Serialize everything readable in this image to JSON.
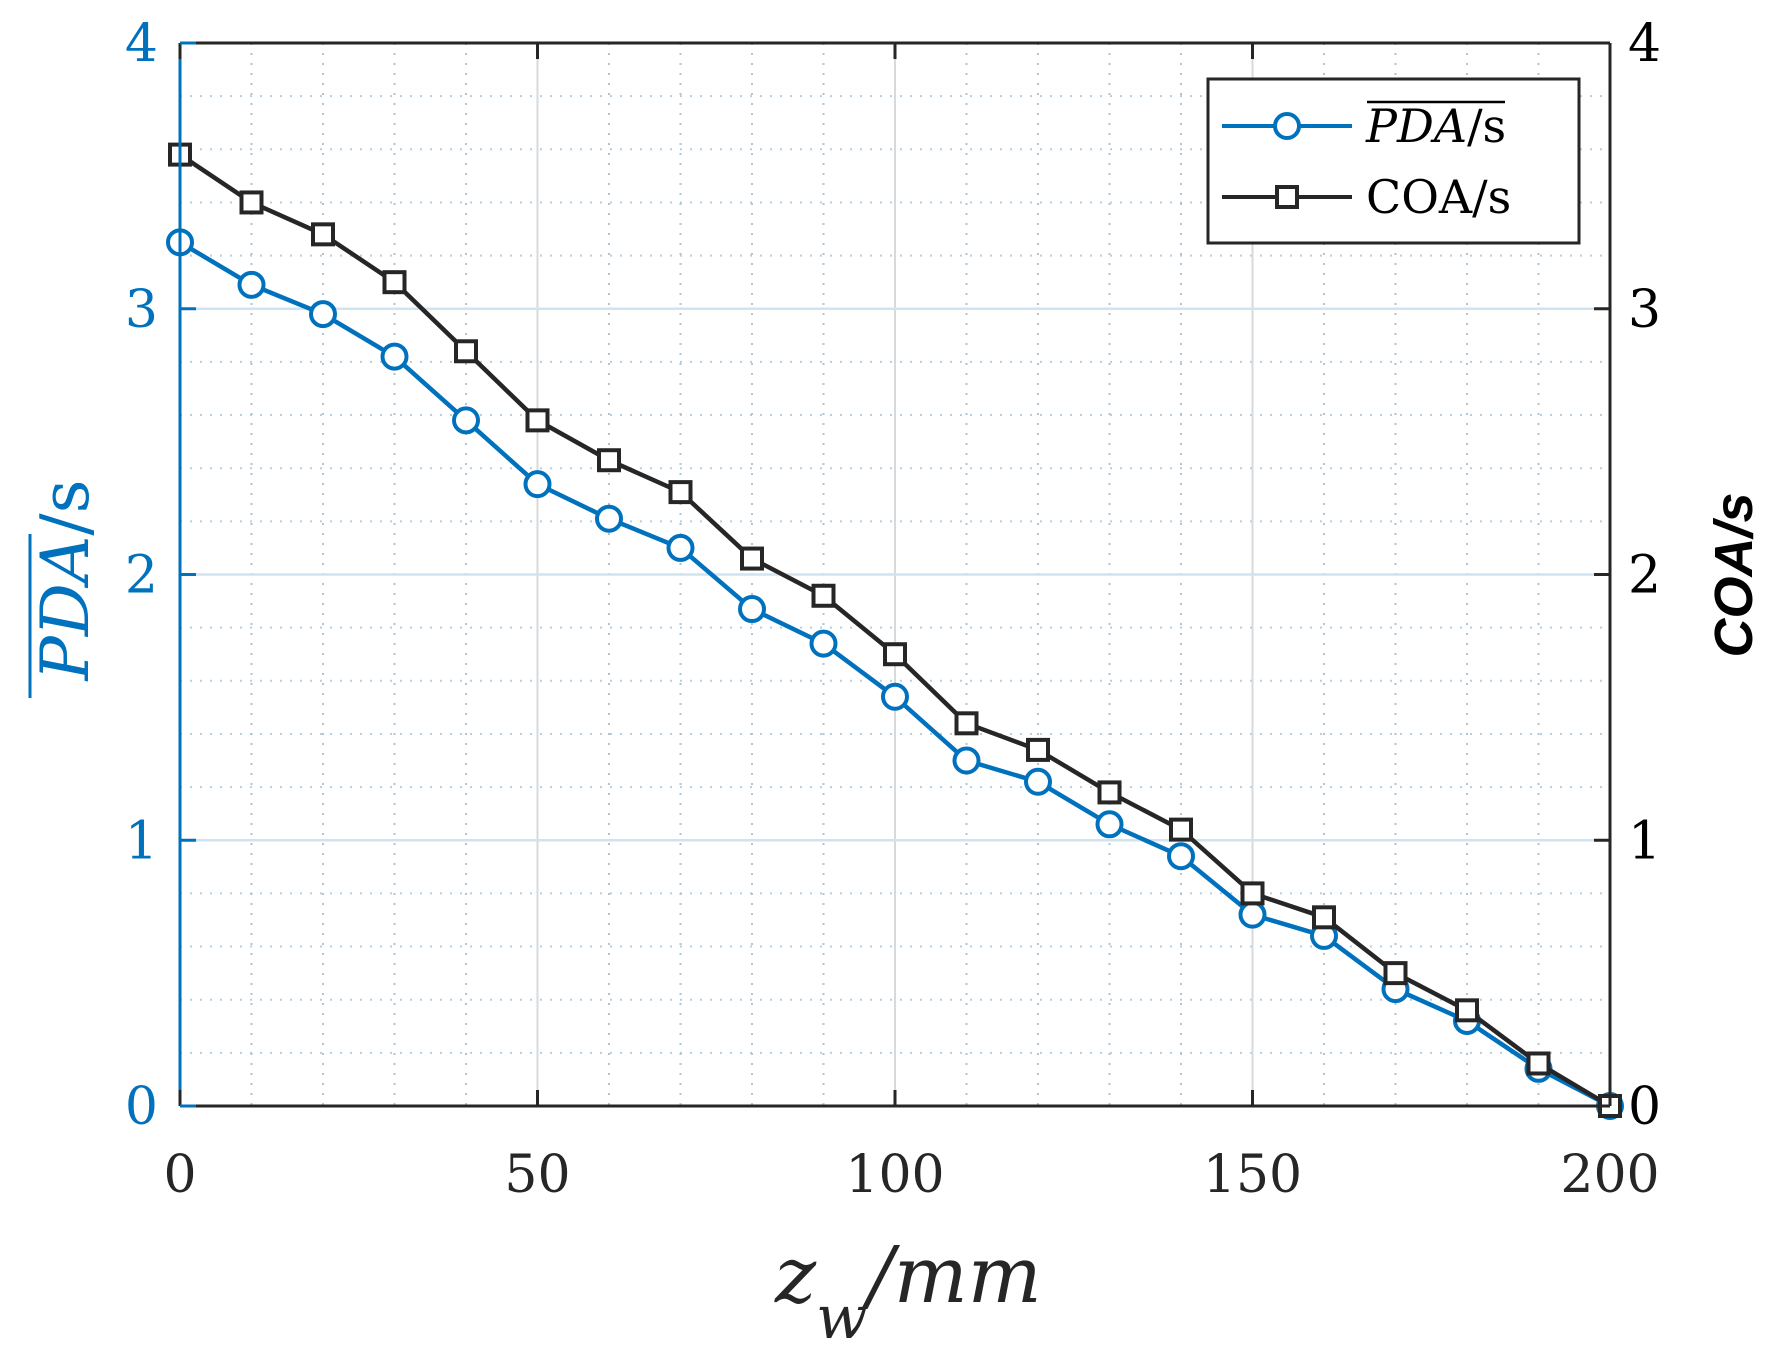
{
  "chart_data": {
    "type": "line",
    "x": [
      0,
      10,
      20,
      30,
      40,
      50,
      60,
      70,
      80,
      90,
      100,
      110,
      120,
      130,
      140,
      150,
      160,
      170,
      180,
      190,
      200
    ],
    "series": [
      {
        "name": "PDA/s",
        "axis": "left",
        "color": "#0072BD",
        "marker": "circle",
        "values": [
          3.25,
          3.09,
          2.98,
          2.82,
          2.58,
          2.34,
          2.21,
          2.1,
          1.87,
          1.74,
          1.54,
          1.3,
          1.22,
          1.06,
          0.94,
          0.72,
          0.64,
          0.44,
          0.32,
          0.14,
          0.0
        ]
      },
      {
        "name": "COA/s",
        "axis": "right",
        "color": "#262626",
        "marker": "square",
        "values": [
          3.58,
          3.4,
          3.28,
          3.1,
          2.84,
          2.58,
          2.43,
          2.31,
          2.06,
          1.92,
          1.7,
          1.44,
          1.34,
          1.18,
          1.04,
          0.8,
          0.71,
          0.5,
          0.36,
          0.16,
          0.0
        ]
      }
    ],
    "xlim": [
      0,
      200
    ],
    "ylim_left": [
      0,
      4
    ],
    "ylim_right": [
      0,
      4
    ],
    "xticks": [
      "0",
      "50",
      "100",
      "150",
      "200"
    ],
    "yticks_left": [
      "0",
      "1",
      "2",
      "3",
      "4"
    ],
    "yticks_right": [
      "0",
      "1",
      "2",
      "3",
      "4"
    ],
    "xlabel": {
      "main": "z",
      "sub": "w",
      "rest": "/mm"
    },
    "ylabel_left": {
      "main": "PDA",
      "rest": "/s"
    },
    "ylabel_right": "COA/s",
    "legend": {
      "position": "top-right",
      "entries": [
        {
          "main": "PDA",
          "rest": "/s"
        },
        {
          "main": "COA/s",
          "rest": ""
        }
      ]
    },
    "grid": {
      "major": true,
      "minor": true
    },
    "colors": {
      "left_axis": "#0072BD",
      "right_axis": "#000000"
    }
  }
}
